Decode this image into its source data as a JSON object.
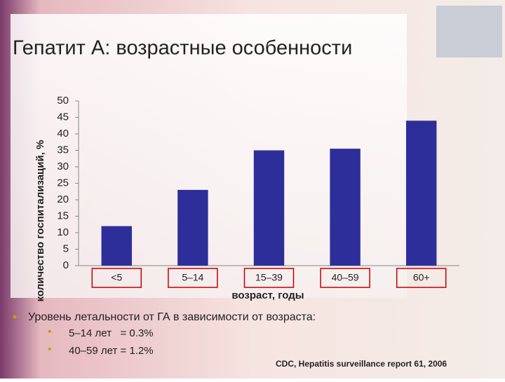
{
  "chart_data": {
    "type": "bar",
    "title": "Гепатит А: возрастные особенности",
    "categories": [
      "<5",
      "5–14",
      "15–39",
      "40–59",
      "60+"
    ],
    "values": [
      12,
      23,
      35,
      35.5,
      44
    ],
    "color": "#2e2e9a",
    "ylim": [
      0,
      50
    ],
    "yticks": [
      0,
      5,
      10,
      15,
      20,
      25,
      30,
      35,
      40,
      45,
      50
    ],
    "y_label": "количество госпитализаций, %",
    "x_label": "возраст, годы",
    "grid": false
  },
  "slide": {
    "bullet": "Уровень летальности от ГА в зависимости от возраста:",
    "sub_bullets": [
      "5–14 лет   = 0.3%",
      "40–59 лет = 1.2%"
    ],
    "source": "CDC, Hepatitis surveillance report 61, 2006"
  }
}
